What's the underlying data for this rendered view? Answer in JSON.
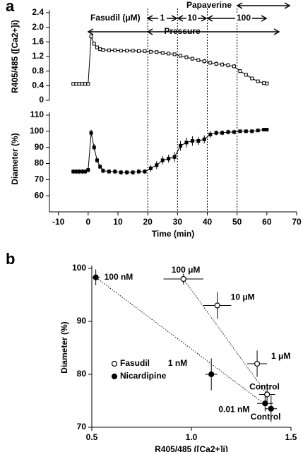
{
  "chart_data": [
    {
      "type": "line",
      "panel_label": "a",
      "ylabel": "R405/485 ([Ca2+]i)",
      "xlim": [
        -13,
        70
      ],
      "ylim": [
        0,
        2.4
      ],
      "yticks": [
        0,
        0.4,
        0.8,
        1.2,
        1.6,
        {
          "value": 2,
          "label": "2.0"
        },
        2.4
      ],
      "vlines": [
        20,
        30,
        40,
        50
      ],
      "annotations": [
        "Fasudil (μM)",
        "1",
        "10",
        "100",
        "Pressure",
        "Papaverine"
      ],
      "x": [
        -5,
        -4,
        -3,
        -2,
        -1,
        0,
        1,
        2,
        3,
        4,
        5,
        7,
        9,
        11,
        13,
        15,
        17,
        19,
        21,
        23,
        25,
        27,
        29,
        31,
        33,
        35,
        37,
        39,
        41,
        43,
        45,
        47,
        49,
        51,
        53,
        55,
        57,
        59,
        60
      ],
      "series": [
        {
          "color": "#000000",
          "marker": "open",
          "values": [
            0.45,
            0.45,
            0.45,
            0.45,
            0.45,
            0.45,
            1.75,
            1.55,
            1.45,
            1.4,
            1.38,
            1.37,
            1.37,
            1.36,
            1.36,
            1.36,
            1.35,
            1.35,
            1.33,
            1.32,
            1.3,
            1.28,
            1.26,
            1.22,
            1.18,
            1.14,
            1.1,
            1.07,
            1.03,
            1.0,
            0.98,
            0.96,
            0.93,
            0.8,
            0.7,
            0.6,
            0.52,
            0.47,
            0.46
          ],
          "errors": [
            0.01,
            0.01,
            0.01,
            0.01,
            0.01,
            0.01,
            0.05,
            0.04,
            0.03,
            0.03,
            0.03,
            0.03,
            0.03,
            0.03,
            0.03,
            0.03,
            0.03,
            0.03,
            0.04,
            0.04,
            0.04,
            0.04,
            0.05,
            0.05,
            0.05,
            0.05,
            0.05,
            0.06,
            0.06,
            0.06,
            0.06,
            0.06,
            0.06,
            0.05,
            0.05,
            0.04,
            0.03,
            0.02,
            0.02
          ]
        }
      ]
    },
    {
      "type": "line",
      "ylabel": "Diameter (%)",
      "xlabel": "Time (min)",
      "xlim": [
        -13,
        70
      ],
      "xticks": [
        -10,
        0,
        10,
        20,
        30,
        40,
        50,
        60,
        70
      ],
      "ylim": [
        50,
        110
      ],
      "yticks": [
        60,
        70,
        80,
        90,
        100,
        110
      ],
      "x": [
        -5,
        -4,
        -3,
        -2,
        -1,
        0,
        1,
        2,
        3,
        4,
        5,
        7,
        9,
        11,
        13,
        15,
        17,
        19,
        21,
        23,
        25,
        27,
        29,
        31,
        33,
        35,
        37,
        39,
        41,
        43,
        45,
        47,
        49,
        51,
        53,
        55,
        57,
        59,
        60
      ],
      "series": [
        {
          "color": "#000000",
          "marker": "filled",
          "values": [
            75,
            75,
            75,
            75,
            75,
            76,
            99,
            90,
            82,
            78,
            75.5,
            75,
            75,
            74.5,
            74.5,
            74.5,
            75,
            75,
            77,
            79,
            82,
            83,
            84,
            91,
            93,
            94,
            94,
            95,
            98,
            99,
            99,
            99.5,
            99.5,
            100,
            100,
            100,
            100.5,
            101,
            101
          ],
          "errors": [
            1.5,
            1.5,
            1.5,
            1.5,
            1.5,
            1.5,
            2,
            2,
            1.5,
            1.5,
            1.5,
            1.5,
            1.5,
            1.5,
            1.5,
            1.5,
            1.5,
            1.5,
            2,
            2.5,
            2.5,
            2.5,
            3,
            3,
            3,
            3,
            2.5,
            2.5,
            2,
            1.5,
            1.5,
            1.5,
            1.5,
            1,
            1,
            1,
            1,
            1,
            1
          ]
        }
      ]
    },
    {
      "type": "scatter",
      "panel_label": "b",
      "xlabel": "R405/485 ([Ca2+]i)",
      "ylabel": "Diameter (%)",
      "xlim": [
        0.5,
        1.5
      ],
      "xticks": [
        0.5,
        {
          "value": 1,
          "label": "1.0"
        },
        1.5
      ],
      "ylim": [
        70,
        100
      ],
      "yticks": [
        70,
        80,
        90,
        100
      ],
      "legend": "center-left",
      "series": [
        {
          "name": "Fasudil",
          "color": "#000000",
          "marker": "open",
          "x": [
            1.38,
            1.33,
            1.13,
            0.96
          ],
          "values": [
            76.2,
            82,
            93,
            98
          ],
          "x_errors": [
            0.04,
            0.05,
            0.07,
            0.1
          ],
          "errors": [
            2,
            2.5,
            2.5,
            1
          ],
          "point_labels": [
            "Control",
            "1 μM",
            "10 μM",
            "100 μM"
          ]
        },
        {
          "name": "Nicardipine",
          "color": "#000000",
          "marker": "filled",
          "x": [
            1.4,
            1.37,
            1.1,
            0.52
          ],
          "values": [
            73.5,
            74.5,
            80,
            98.3
          ],
          "x_errors": [
            0.03,
            0.04,
            0.03,
            0.02
          ],
          "errors": [
            2.5,
            1.5,
            3,
            1.5
          ],
          "point_labels": [
            "Control",
            "0.01 nM",
            "1 nM",
            "100 nM"
          ]
        }
      ]
    }
  ]
}
